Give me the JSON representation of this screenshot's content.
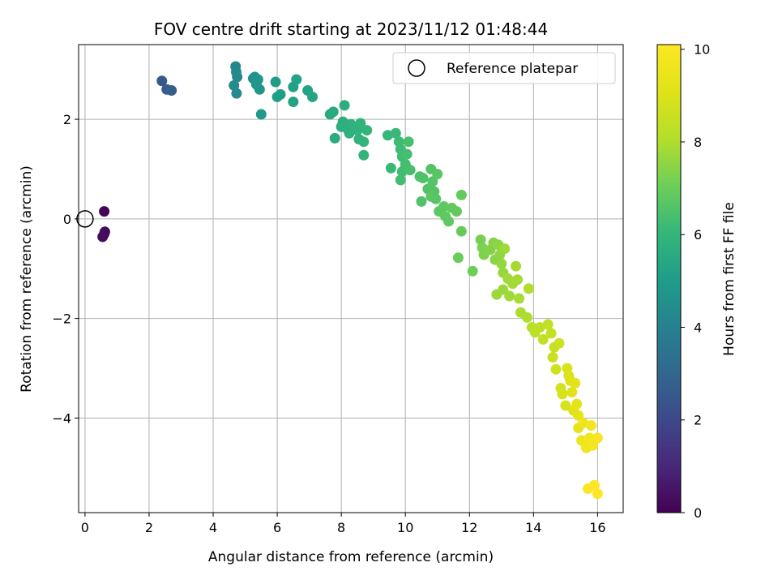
{
  "chart_data": {
    "type": "scatter",
    "title": "FOV centre drift starting at 2023/11/12 01:48:44",
    "xlabel": "Angular distance from reference (arcmin)",
    "ylabel": "Rotation from reference (arcmin)",
    "xlim": [
      -0.2,
      16.8
    ],
    "ylim": [
      -5.9,
      3.5
    ],
    "xticks": [
      0,
      2,
      4,
      6,
      8,
      10,
      12,
      14,
      16
    ],
    "yticks": [
      -4,
      -2,
      0,
      2
    ],
    "grid": true,
    "legend": {
      "position": "top-right",
      "entries": [
        "Reference platepar"
      ]
    },
    "reference_point": {
      "x": 0,
      "y": 0,
      "label": "Reference platepar"
    },
    "colorbar": {
      "label": "Hours from first FF file",
      "range": [
        0,
        10.1
      ],
      "ticks": [
        0,
        2,
        4,
        6,
        8,
        10
      ],
      "colormap": "viridis"
    },
    "points": [
      {
        "x": 0.6,
        "y": 0.15,
        "c": 0.1
      },
      {
        "x": 0.62,
        "y": -0.26,
        "c": 0.2
      },
      {
        "x": 0.6,
        "y": -0.3,
        "c": 0.25
      },
      {
        "x": 0.55,
        "y": -0.36,
        "c": 0.3
      },
      {
        "x": 2.4,
        "y": 2.77,
        "c": 2.5
      },
      {
        "x": 2.55,
        "y": 2.6,
        "c": 2.6
      },
      {
        "x": 2.7,
        "y": 2.58,
        "c": 2.7
      },
      {
        "x": 4.7,
        "y": 3.06,
        "c": 4.2
      },
      {
        "x": 4.72,
        "y": 2.95,
        "c": 4.25
      },
      {
        "x": 4.75,
        "y": 2.85,
        "c": 4.3
      },
      {
        "x": 4.65,
        "y": 2.68,
        "c": 4.35
      },
      {
        "x": 4.73,
        "y": 2.52,
        "c": 4.4
      },
      {
        "x": 5.25,
        "y": 2.82,
        "c": 4.6
      },
      {
        "x": 5.3,
        "y": 2.85,
        "c": 4.65
      },
      {
        "x": 5.4,
        "y": 2.8,
        "c": 4.7
      },
      {
        "x": 5.35,
        "y": 2.7,
        "c": 4.75
      },
      {
        "x": 5.45,
        "y": 2.6,
        "c": 4.8
      },
      {
        "x": 5.5,
        "y": 2.1,
        "c": 4.85
      },
      {
        "x": 5.95,
        "y": 2.75,
        "c": 5.0
      },
      {
        "x": 6.0,
        "y": 2.45,
        "c": 5.05
      },
      {
        "x": 6.1,
        "y": 2.5,
        "c": 5.1
      },
      {
        "x": 6.5,
        "y": 2.65,
        "c": 5.15
      },
      {
        "x": 6.6,
        "y": 2.8,
        "c": 5.2
      },
      {
        "x": 6.5,
        "y": 2.35,
        "c": 5.25
      },
      {
        "x": 6.95,
        "y": 2.58,
        "c": 5.3
      },
      {
        "x": 7.1,
        "y": 2.45,
        "c": 5.35
      },
      {
        "x": 7.65,
        "y": 2.1,
        "c": 5.5
      },
      {
        "x": 7.75,
        "y": 2.15,
        "c": 5.55
      },
      {
        "x": 7.8,
        "y": 1.62,
        "c": 5.6
      },
      {
        "x": 8.0,
        "y": 1.85,
        "c": 5.65
      },
      {
        "x": 8.1,
        "y": 2.28,
        "c": 5.7
      },
      {
        "x": 8.05,
        "y": 1.95,
        "c": 5.72
      },
      {
        "x": 8.2,
        "y": 1.8,
        "c": 5.75
      },
      {
        "x": 8.3,
        "y": 1.9,
        "c": 5.78
      },
      {
        "x": 8.25,
        "y": 1.72,
        "c": 5.8
      },
      {
        "x": 8.4,
        "y": 1.85,
        "c": 5.82
      },
      {
        "x": 8.5,
        "y": 1.78,
        "c": 5.85
      },
      {
        "x": 8.55,
        "y": 1.6,
        "c": 5.87
      },
      {
        "x": 8.6,
        "y": 1.92,
        "c": 5.9
      },
      {
        "x": 8.7,
        "y": 1.55,
        "c": 5.92
      },
      {
        "x": 8.8,
        "y": 1.78,
        "c": 5.95
      },
      {
        "x": 8.7,
        "y": 1.28,
        "c": 5.97
      },
      {
        "x": 9.45,
        "y": 1.68,
        "c": 6.05
      },
      {
        "x": 9.7,
        "y": 1.72,
        "c": 6.1
      },
      {
        "x": 9.55,
        "y": 1.02,
        "c": 6.15
      },
      {
        "x": 9.8,
        "y": 1.55,
        "c": 6.2
      },
      {
        "x": 9.85,
        "y": 1.4,
        "c": 6.22
      },
      {
        "x": 9.9,
        "y": 1.25,
        "c": 6.25
      },
      {
        "x": 9.9,
        "y": 0.95,
        "c": 6.28
      },
      {
        "x": 9.85,
        "y": 0.78,
        "c": 6.3
      },
      {
        "x": 10.0,
        "y": 1.1,
        "c": 6.33
      },
      {
        "x": 10.05,
        "y": 1.3,
        "c": 6.36
      },
      {
        "x": 10.1,
        "y": 1.55,
        "c": 6.4
      },
      {
        "x": 10.15,
        "y": 0.98,
        "c": 6.42
      },
      {
        "x": 10.45,
        "y": 0.85,
        "c": 6.5
      },
      {
        "x": 10.55,
        "y": 0.82,
        "c": 6.52
      },
      {
        "x": 10.5,
        "y": 0.35,
        "c": 6.55
      },
      {
        "x": 10.7,
        "y": 0.6,
        "c": 6.58
      },
      {
        "x": 10.8,
        "y": 1.0,
        "c": 6.6
      },
      {
        "x": 10.85,
        "y": 0.75,
        "c": 6.62
      },
      {
        "x": 10.9,
        "y": 0.55,
        "c": 6.65
      },
      {
        "x": 10.95,
        "y": 0.4,
        "c": 6.67
      },
      {
        "x": 11.0,
        "y": 0.9,
        "c": 6.7
      },
      {
        "x": 10.8,
        "y": 0.45,
        "c": 6.72
      },
      {
        "x": 11.05,
        "y": 0.15,
        "c": 6.75
      },
      {
        "x": 11.2,
        "y": 0.25,
        "c": 6.78
      },
      {
        "x": 11.25,
        "y": 0.05,
        "c": 6.8
      },
      {
        "x": 11.35,
        "y": -0.05,
        "c": 6.82
      },
      {
        "x": 11.45,
        "y": 0.22,
        "c": 6.85
      },
      {
        "x": 11.6,
        "y": 0.15,
        "c": 6.87
      },
      {
        "x": 11.75,
        "y": 0.48,
        "c": 6.9
      },
      {
        "x": 11.75,
        "y": -0.25,
        "c": 6.95
      },
      {
        "x": 11.65,
        "y": -0.78,
        "c": 7.0
      },
      {
        "x": 12.1,
        "y": -1.05,
        "c": 7.05
      },
      {
        "x": 12.35,
        "y": -0.42,
        "c": 7.2
      },
      {
        "x": 12.4,
        "y": -0.58,
        "c": 7.25
      },
      {
        "x": 12.45,
        "y": -0.72,
        "c": 7.3
      },
      {
        "x": 12.65,
        "y": -0.62,
        "c": 7.35
      },
      {
        "x": 12.75,
        "y": -0.48,
        "c": 7.4
      },
      {
        "x": 12.8,
        "y": -0.82,
        "c": 7.45
      },
      {
        "x": 12.9,
        "y": -0.52,
        "c": 7.5
      },
      {
        "x": 12.95,
        "y": -0.72,
        "c": 7.55
      },
      {
        "x": 13.0,
        "y": -0.9,
        "c": 7.6
      },
      {
        "x": 13.05,
        "y": -1.08,
        "c": 7.65
      },
      {
        "x": 12.85,
        "y": -1.52,
        "c": 7.7
      },
      {
        "x": 13.05,
        "y": -1.42,
        "c": 7.72
      },
      {
        "x": 13.1,
        "y": -0.6,
        "c": 7.75
      },
      {
        "x": 13.2,
        "y": -1.2,
        "c": 7.78
      },
      {
        "x": 13.25,
        "y": -1.55,
        "c": 7.8
      },
      {
        "x": 13.35,
        "y": -1.3,
        "c": 7.82
      },
      {
        "x": 13.45,
        "y": -0.95,
        "c": 7.85
      },
      {
        "x": 13.5,
        "y": -1.22,
        "c": 7.87
      },
      {
        "x": 13.55,
        "y": -1.6,
        "c": 7.9
      },
      {
        "x": 13.6,
        "y": -1.88,
        "c": 7.95
      },
      {
        "x": 13.8,
        "y": -1.98,
        "c": 8.0
      },
      {
        "x": 13.85,
        "y": -1.4,
        "c": 8.05
      },
      {
        "x": 13.95,
        "y": -2.18,
        "c": 8.2
      },
      {
        "x": 14.05,
        "y": -2.28,
        "c": 8.25
      },
      {
        "x": 14.2,
        "y": -2.18,
        "c": 8.3
      },
      {
        "x": 14.3,
        "y": -2.42,
        "c": 8.35
      },
      {
        "x": 14.45,
        "y": -2.12,
        "c": 8.4
      },
      {
        "x": 14.55,
        "y": -2.3,
        "c": 8.45
      },
      {
        "x": 14.65,
        "y": -2.58,
        "c": 8.5
      },
      {
        "x": 14.6,
        "y": -2.78,
        "c": 8.55
      },
      {
        "x": 14.8,
        "y": -2.5,
        "c": 8.6
      },
      {
        "x": 14.7,
        "y": -3.02,
        "c": 8.65
      },
      {
        "x": 14.85,
        "y": -3.4,
        "c": 8.8
      },
      {
        "x": 14.9,
        "y": -3.52,
        "c": 8.85
      },
      {
        "x": 15.0,
        "y": -3.75,
        "c": 8.9
      },
      {
        "x": 15.05,
        "y": -3.0,
        "c": 8.95
      },
      {
        "x": 15.1,
        "y": -3.15,
        "c": 9.0
      },
      {
        "x": 15.15,
        "y": -3.25,
        "c": 9.05
      },
      {
        "x": 15.2,
        "y": -3.48,
        "c": 9.1
      },
      {
        "x": 15.25,
        "y": -3.85,
        "c": 9.15
      },
      {
        "x": 15.3,
        "y": -3.3,
        "c": 9.2
      },
      {
        "x": 15.35,
        "y": -3.72,
        "c": 9.25
      },
      {
        "x": 15.4,
        "y": -3.95,
        "c": 9.3
      },
      {
        "x": 15.4,
        "y": -4.2,
        "c": 9.35
      },
      {
        "x": 15.5,
        "y": -4.45,
        "c": 9.5
      },
      {
        "x": 15.55,
        "y": -4.1,
        "c": 9.55
      },
      {
        "x": 15.6,
        "y": -4.5,
        "c": 9.6
      },
      {
        "x": 15.65,
        "y": -4.6,
        "c": 9.65
      },
      {
        "x": 15.75,
        "y": -4.4,
        "c": 9.7
      },
      {
        "x": 15.8,
        "y": -4.15,
        "c": 9.75
      },
      {
        "x": 15.85,
        "y": -4.55,
        "c": 9.8
      },
      {
        "x": 16.0,
        "y": -4.4,
        "c": 9.85
      },
      {
        "x": 15.7,
        "y": -5.42,
        "c": 10.0
      },
      {
        "x": 15.9,
        "y": -5.35,
        "c": 10.05
      },
      {
        "x": 16.0,
        "y": -5.52,
        "c": 10.1
      }
    ]
  }
}
